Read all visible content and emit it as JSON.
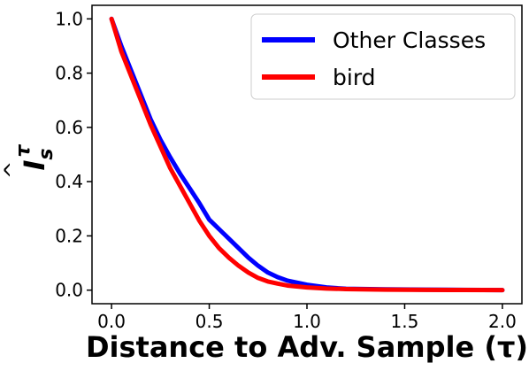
{
  "chart_data": {
    "type": "line",
    "xlabel": "Distance to Adv. Sample (τ)",
    "ylabel": "Î_s^τ",
    "ylabel_parts": {
      "base": "I",
      "sub": "s",
      "sup": "τ"
    },
    "xlim": [
      -0.1,
      2.1
    ],
    "ylim": [
      -0.05,
      1.05
    ],
    "xticks": [
      0.0,
      0.5,
      1.0,
      1.5,
      2.0
    ],
    "xtick_labels": [
      "0.0",
      "0.5",
      "1.0",
      "1.5",
      "2.0"
    ],
    "yticks": [
      0.0,
      0.2,
      0.4,
      0.6,
      0.8,
      1.0
    ],
    "ytick_labels": [
      "0.0",
      "0.2",
      "0.4",
      "0.6",
      "0.8",
      "1.0"
    ],
    "grid": false,
    "legend_position": "top-right",
    "series": [
      {
        "name": "Other Classes",
        "color": "#0000ff",
        "x": [
          0.0,
          0.05,
          0.1,
          0.15,
          0.2,
          0.25,
          0.3,
          0.35,
          0.4,
          0.45,
          0.5,
          0.55,
          0.6,
          0.65,
          0.7,
          0.75,
          0.8,
          0.85,
          0.9,
          1.0,
          1.1,
          1.2,
          1.4,
          1.6,
          1.8,
          2.0
        ],
        "y": [
          1.0,
          0.9,
          0.81,
          0.72,
          0.63,
          0.555,
          0.49,
          0.43,
          0.375,
          0.32,
          0.26,
          0.225,
          0.19,
          0.155,
          0.12,
          0.09,
          0.065,
          0.048,
          0.035,
          0.02,
          0.01,
          0.005,
          0.003,
          0.002,
          0.001,
          0.0
        ]
      },
      {
        "name": "bird",
        "color": "#ff0000",
        "x": [
          0.0,
          0.05,
          0.1,
          0.15,
          0.2,
          0.25,
          0.3,
          0.35,
          0.4,
          0.45,
          0.5,
          0.55,
          0.6,
          0.65,
          0.7,
          0.75,
          0.8,
          0.85,
          0.9,
          1.0,
          1.1,
          1.2,
          1.4,
          1.6,
          1.8,
          2.0
        ],
        "y": [
          1.0,
          0.88,
          0.79,
          0.7,
          0.61,
          0.53,
          0.45,
          0.385,
          0.32,
          0.255,
          0.2,
          0.155,
          0.12,
          0.09,
          0.065,
          0.045,
          0.032,
          0.024,
          0.017,
          0.01,
          0.006,
          0.004,
          0.002,
          0.001,
          0.0005,
          0.0
        ]
      }
    ]
  }
}
